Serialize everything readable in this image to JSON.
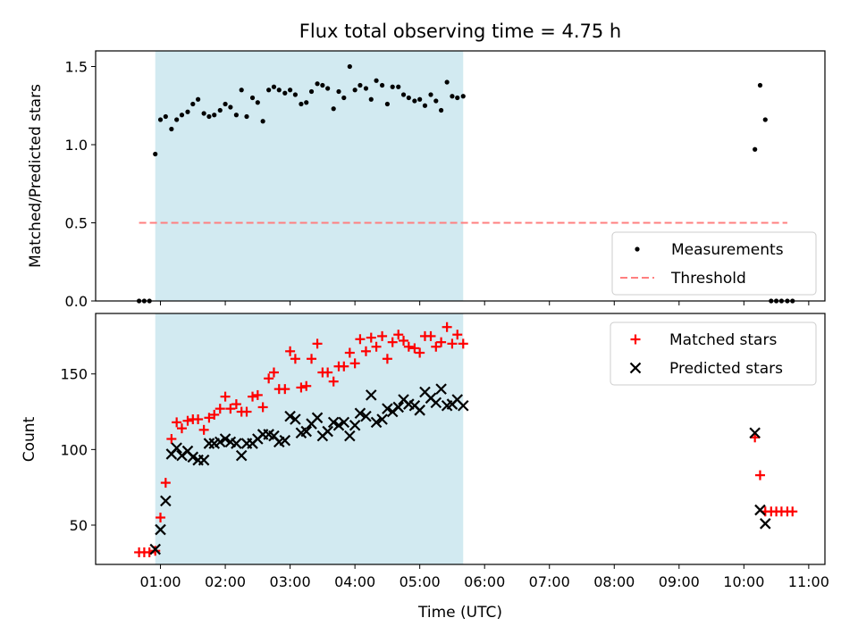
{
  "chart_data": [
    {
      "type": "scatter",
      "title": "Flux total observing time = 4.75 h",
      "ylabel": "Matched/Predicted stars",
      "xlabel": "",
      "ylim": [
        0,
        1.6
      ],
      "yticks": [
        "0.0",
        "0.5",
        "1.0",
        "1.5"
      ],
      "grid": false,
      "legend_position": "lower right",
      "shaded_interval": {
        "start_hours": 0.92,
        "end_hours": 5.67,
        "color": "#add8e6"
      },
      "threshold": {
        "name": "Threshold",
        "value": 0.5,
        "x_start_hours": 0.67,
        "x_end_hours": 10.67,
        "color": "#ff7f7f"
      },
      "series": [
        {
          "name": "Measurements",
          "color": "#000000",
          "marker": "dot",
          "points": [
            [
              0.67,
              0
            ],
            [
              0.75,
              0
            ],
            [
              0.83,
              0
            ],
            [
              0.92,
              0.94
            ],
            [
              1.0,
              1.16
            ],
            [
              1.08,
              1.18
            ],
            [
              1.17,
              1.1
            ],
            [
              1.25,
              1.16
            ],
            [
              1.33,
              1.19
            ],
            [
              1.42,
              1.21
            ],
            [
              1.5,
              1.26
            ],
            [
              1.58,
              1.29
            ],
            [
              1.67,
              1.2
            ],
            [
              1.75,
              1.18
            ],
            [
              1.83,
              1.19
            ],
            [
              1.92,
              1.22
            ],
            [
              2.0,
              1.26
            ],
            [
              2.08,
              1.24
            ],
            [
              2.17,
              1.19
            ],
            [
              2.25,
              1.35
            ],
            [
              2.33,
              1.18
            ],
            [
              2.42,
              1.3
            ],
            [
              2.5,
              1.27
            ],
            [
              2.58,
              1.15
            ],
            [
              2.67,
              1.35
            ],
            [
              2.75,
              1.37
            ],
            [
              2.83,
              1.35
            ],
            [
              2.92,
              1.33
            ],
            [
              3.0,
              1.35
            ],
            [
              3.08,
              1.32
            ],
            [
              3.17,
              1.26
            ],
            [
              3.25,
              1.27
            ],
            [
              3.33,
              1.34
            ],
            [
              3.42,
              1.39
            ],
            [
              3.5,
              1.38
            ],
            [
              3.58,
              1.36
            ],
            [
              3.67,
              1.23
            ],
            [
              3.75,
              1.34
            ],
            [
              3.83,
              1.3
            ],
            [
              3.92,
              1.5
            ],
            [
              4.0,
              1.35
            ],
            [
              4.08,
              1.38
            ],
            [
              4.17,
              1.36
            ],
            [
              4.25,
              1.29
            ],
            [
              4.33,
              1.41
            ],
            [
              4.42,
              1.38
            ],
            [
              4.5,
              1.26
            ],
            [
              4.58,
              1.37
            ],
            [
              4.67,
              1.37
            ],
            [
              4.75,
              1.32
            ],
            [
              4.83,
              1.3
            ],
            [
              4.92,
              1.28
            ],
            [
              5.0,
              1.29
            ],
            [
              5.08,
              1.25
            ],
            [
              5.17,
              1.32
            ],
            [
              5.25,
              1.28
            ],
            [
              5.33,
              1.22
            ],
            [
              5.42,
              1.4
            ],
            [
              5.5,
              1.31
            ],
            [
              5.58,
              1.3
            ],
            [
              5.67,
              1.31
            ],
            [
              10.17,
              0.97
            ],
            [
              10.25,
              1.38
            ],
            [
              10.33,
              1.16
            ],
            [
              10.42,
              0
            ],
            [
              10.5,
              0
            ],
            [
              10.58,
              0
            ],
            [
              10.67,
              0
            ],
            [
              10.75,
              0
            ]
          ]
        }
      ]
    },
    {
      "type": "scatter",
      "title": "",
      "ylabel": "Count",
      "xlabel": "Time (UTC)",
      "ylim": [
        24,
        190
      ],
      "xlim": [
        0.0,
        11.25
      ],
      "yticks": [
        "50",
        "100",
        "150"
      ],
      "xticks": [
        "01:00",
        "02:00",
        "03:00",
        "04:00",
        "05:00",
        "06:00",
        "07:00",
        "08:00",
        "09:00",
        "10:00",
        "11:00"
      ],
      "grid": false,
      "legend_position": "upper right",
      "shaded_interval": {
        "start_hours": 0.92,
        "end_hours": 5.67,
        "color": "#add8e6"
      },
      "series": [
        {
          "name": "Matched stars",
          "color": "#ff0000",
          "marker": "plus",
          "points": [
            [
              0.67,
              32
            ],
            [
              0.75,
              32
            ],
            [
              0.83,
              32
            ],
            [
              0.92,
              33
            ],
            [
              1.0,
              55
            ],
            [
              1.08,
              78
            ],
            [
              1.17,
              107
            ],
            [
              1.25,
              118
            ],
            [
              1.33,
              114
            ],
            [
              1.42,
              119
            ],
            [
              1.5,
              120
            ],
            [
              1.58,
              120
            ],
            [
              1.67,
              113
            ],
            [
              1.75,
              121
            ],
            [
              1.83,
              123
            ],
            [
              1.92,
              127
            ],
            [
              2.0,
              135
            ],
            [
              2.08,
              127
            ],
            [
              2.17,
              130
            ],
            [
              2.25,
              125
            ],
            [
              2.33,
              125
            ],
            [
              2.42,
              135
            ],
            [
              2.5,
              136
            ],
            [
              2.58,
              128
            ],
            [
              2.67,
              147
            ],
            [
              2.75,
              151
            ],
            [
              2.83,
              140
            ],
            [
              2.92,
              140
            ],
            [
              3.0,
              165
            ],
            [
              3.08,
              160
            ],
            [
              3.17,
              141
            ],
            [
              3.25,
              142
            ],
            [
              3.33,
              160
            ],
            [
              3.42,
              170
            ],
            [
              3.5,
              151
            ],
            [
              3.58,
              151
            ],
            [
              3.67,
              145
            ],
            [
              3.75,
              155
            ],
            [
              3.83,
              155
            ],
            [
              3.92,
              164
            ],
            [
              4.0,
              157
            ],
            [
              4.08,
              173
            ],
            [
              4.17,
              165
            ],
            [
              4.25,
              174
            ],
            [
              4.33,
              168
            ],
            [
              4.42,
              175
            ],
            [
              4.5,
              160
            ],
            [
              4.58,
              171
            ],
            [
              4.67,
              176
            ],
            [
              4.75,
              172
            ],
            [
              4.83,
              168
            ],
            [
              4.92,
              167
            ],
            [
              5.0,
              164
            ],
            [
              5.08,
              175
            ],
            [
              5.17,
              175
            ],
            [
              5.25,
              168
            ],
            [
              5.33,
              171
            ],
            [
              5.42,
              181
            ],
            [
              5.5,
              170
            ],
            [
              5.58,
              176
            ],
            [
              5.67,
              170
            ],
            [
              10.17,
              108
            ],
            [
              10.25,
              83
            ],
            [
              10.33,
              59
            ],
            [
              10.42,
              59
            ],
            [
              10.5,
              59
            ],
            [
              10.58,
              59
            ],
            [
              10.67,
              59
            ],
            [
              10.75,
              59
            ]
          ]
        },
        {
          "name": "Predicted stars",
          "color": "#000000",
          "marker": "x",
          "points": [
            [
              0.92,
              34
            ],
            [
              1.0,
              47
            ],
            [
              1.08,
              66
            ],
            [
              1.17,
              97
            ],
            [
              1.25,
              101
            ],
            [
              1.33,
              96
            ],
            [
              1.42,
              99
            ],
            [
              1.5,
              95
            ],
            [
              1.58,
              93
            ],
            [
              1.67,
              93
            ],
            [
              1.75,
              104
            ],
            [
              1.83,
              104
            ],
            [
              1.92,
              105
            ],
            [
              2.0,
              107
            ],
            [
              2.08,
              105
            ],
            [
              2.17,
              104
            ],
            [
              2.25,
              96
            ],
            [
              2.33,
              104
            ],
            [
              2.42,
              104
            ],
            [
              2.5,
              107
            ],
            [
              2.58,
              110
            ],
            [
              2.67,
              110
            ],
            [
              2.75,
              109
            ],
            [
              2.83,
              105
            ],
            [
              2.92,
              106
            ],
            [
              3.0,
              122
            ],
            [
              3.08,
              120
            ],
            [
              3.17,
              111
            ],
            [
              3.25,
              112
            ],
            [
              3.33,
              117
            ],
            [
              3.42,
              121
            ],
            [
              3.5,
              109
            ],
            [
              3.58,
              112
            ],
            [
              3.67,
              118
            ],
            [
              3.75,
              116
            ],
            [
              3.83,
              118
            ],
            [
              3.92,
              109
            ],
            [
              4.0,
              116
            ],
            [
              4.08,
              124
            ],
            [
              4.17,
              122
            ],
            [
              4.25,
              136
            ],
            [
              4.33,
              118
            ],
            [
              4.42,
              120
            ],
            [
              4.5,
              127
            ],
            [
              4.58,
              125
            ],
            [
              4.67,
              128
            ],
            [
              4.75,
              133
            ],
            [
              4.83,
              130
            ],
            [
              4.92,
              129
            ],
            [
              5.0,
              126
            ],
            [
              5.08,
              138
            ],
            [
              5.17,
              134
            ],
            [
              5.25,
              131
            ],
            [
              5.33,
              140
            ],
            [
              5.42,
              129
            ],
            [
              5.5,
              130
            ],
            [
              5.58,
              133
            ],
            [
              5.67,
              129
            ],
            [
              10.17,
              111
            ],
            [
              10.25,
              60
            ],
            [
              10.33,
              51
            ]
          ]
        }
      ]
    }
  ]
}
